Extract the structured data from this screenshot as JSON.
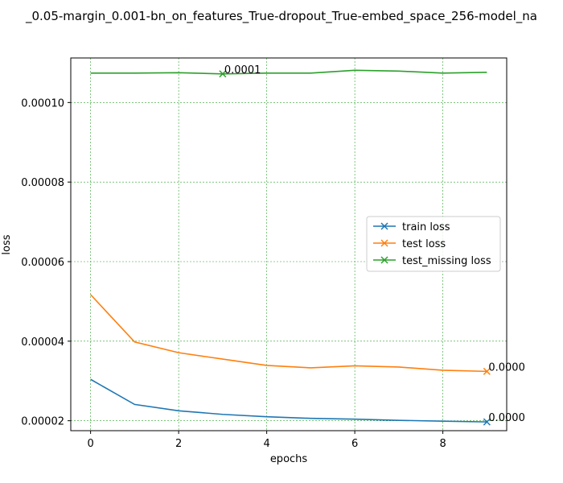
{
  "chart_data": {
    "type": "line",
    "title": "_0.05-margin_0.001-bn_on_features_True-dropout_True-embed_space_256-model_na",
    "xlabel": "epochs",
    "ylabel": "loss",
    "xlim": [
      -0.45,
      9.45
    ],
    "ylim": [
      1.75e-05,
      0.0001112
    ],
    "xticks": [
      0,
      2,
      4,
      6,
      8
    ],
    "xtick_labels": [
      "0",
      "2",
      "4",
      "6",
      "8"
    ],
    "yticks": [
      2e-05,
      4e-05,
      6e-05,
      8e-05,
      0.0001
    ],
    "ytick_labels": [
      "0.00002",
      "0.00004",
      "0.00006",
      "0.00008",
      "0.00010"
    ],
    "grid": true,
    "legend_position": "center-right",
    "x": [
      0,
      1,
      2,
      3,
      4,
      5,
      6,
      7,
      8,
      9
    ],
    "series": [
      {
        "name": "train loss",
        "color": "#1f77b4",
        "values": [
          3.04e-05,
          2.41e-05,
          2.25e-05,
          2.16e-05,
          2.1e-05,
          2.06e-05,
          2.04e-05,
          2.01e-05,
          1.99e-05,
          1.97e-05
        ],
        "marker_index": 9,
        "annotation": "0.0000"
      },
      {
        "name": "test loss",
        "color": "#ff7f0e",
        "values": [
          5.17e-05,
          3.98e-05,
          3.71e-05,
          3.55e-05,
          3.39e-05,
          3.33e-05,
          3.38e-05,
          3.35e-05,
          3.27e-05,
          3.24e-05
        ],
        "marker_index": 9,
        "annotation": "0.0000"
      },
      {
        "name": "test_missing loss",
        "color": "#2ca02c",
        "values": [
          0.0001074,
          0.0001074,
          0.0001075,
          0.0001072,
          0.0001074,
          0.0001074,
          0.0001081,
          0.0001079,
          0.0001074,
          0.0001076
        ],
        "marker_index": 3,
        "annotation": "0.0001"
      }
    ]
  }
}
